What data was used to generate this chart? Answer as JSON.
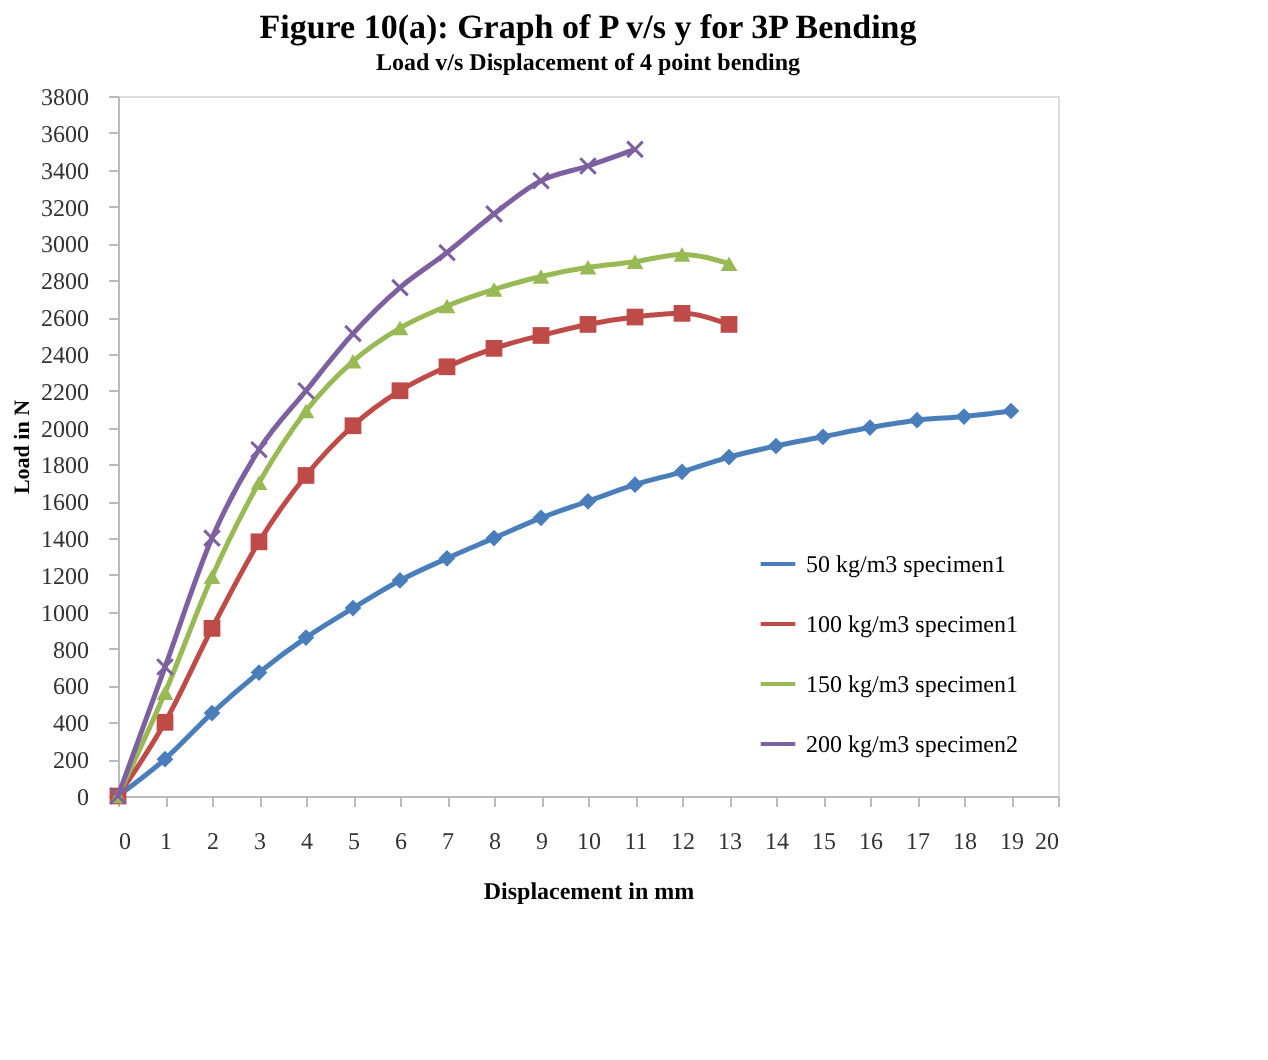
{
  "chart_data": {
    "type": "line",
    "title": "Figure 10(a): Graph of P v/s y for 3P Bending",
    "subtitle": "Load v/s Displacement of 4 point bending",
    "xlabel": "Displacement in mm",
    "ylabel": "Load in N",
    "xlim": [
      0,
      20
    ],
    "xticks": [
      0,
      1,
      2,
      3,
      4,
      5,
      6,
      7,
      8,
      9,
      10,
      11,
      12,
      13,
      14,
      15,
      16,
      17,
      18,
      19,
      20
    ],
    "ylim": [
      0,
      3800
    ],
    "yticks": [
      0,
      200,
      400,
      600,
      800,
      1000,
      1200,
      1400,
      1600,
      1800,
      2000,
      2200,
      2400,
      2600,
      2800,
      3000,
      3200,
      3400,
      3600,
      3800
    ],
    "grid": false,
    "legend": "bottom right",
    "series": [
      {
        "name": "50 kg/m3 specimen1",
        "color": "#4a7ebb",
        "marker": "diamond",
        "x": [
          0,
          1,
          2,
          3,
          4,
          5,
          6,
          7,
          8,
          9,
          10,
          11,
          12,
          13,
          14,
          15,
          16,
          17,
          18,
          19
        ],
        "values": [
          0,
          200,
          450,
          670,
          860,
          1020,
          1170,
          1290,
          1400,
          1510,
          1600,
          1690,
          1760,
          1840,
          1900,
          1950,
          2000,
          2040,
          2060,
          2090
        ]
      },
      {
        "name": "100 kg/m3 specimen1",
        "color": "#be4b48",
        "marker": "square",
        "x": [
          0,
          1,
          2,
          3,
          4,
          5,
          6,
          7,
          8,
          9,
          10,
          11,
          12,
          13
        ],
        "values": [
          0,
          400,
          910,
          1380,
          1740,
          2010,
          2200,
          2330,
          2430,
          2500,
          2560,
          2600,
          2620,
          2560
        ]
      },
      {
        "name": "150 kg/m3 specimen1",
        "color": "#98b954",
        "marker": "triangle",
        "x": [
          0,
          1,
          2,
          3,
          4,
          5,
          6,
          7,
          8,
          9,
          10,
          11,
          12,
          13
        ],
        "values": [
          0,
          560,
          1190,
          1700,
          2090,
          2360,
          2540,
          2660,
          2750,
          2820,
          2870,
          2900,
          2940,
          2890
        ]
      },
      {
        "name": "200 kg/m3 specimen2",
        "color": "#7d60a0",
        "marker": "cross",
        "x": [
          0,
          1,
          2,
          3,
          4,
          5,
          6,
          7,
          8,
          9,
          10,
          11
        ],
        "values": [
          0,
          700,
          1400,
          1880,
          2200,
          2510,
          2760,
          2950,
          3160,
          3340,
          3420,
          3510
        ]
      }
    ]
  }
}
